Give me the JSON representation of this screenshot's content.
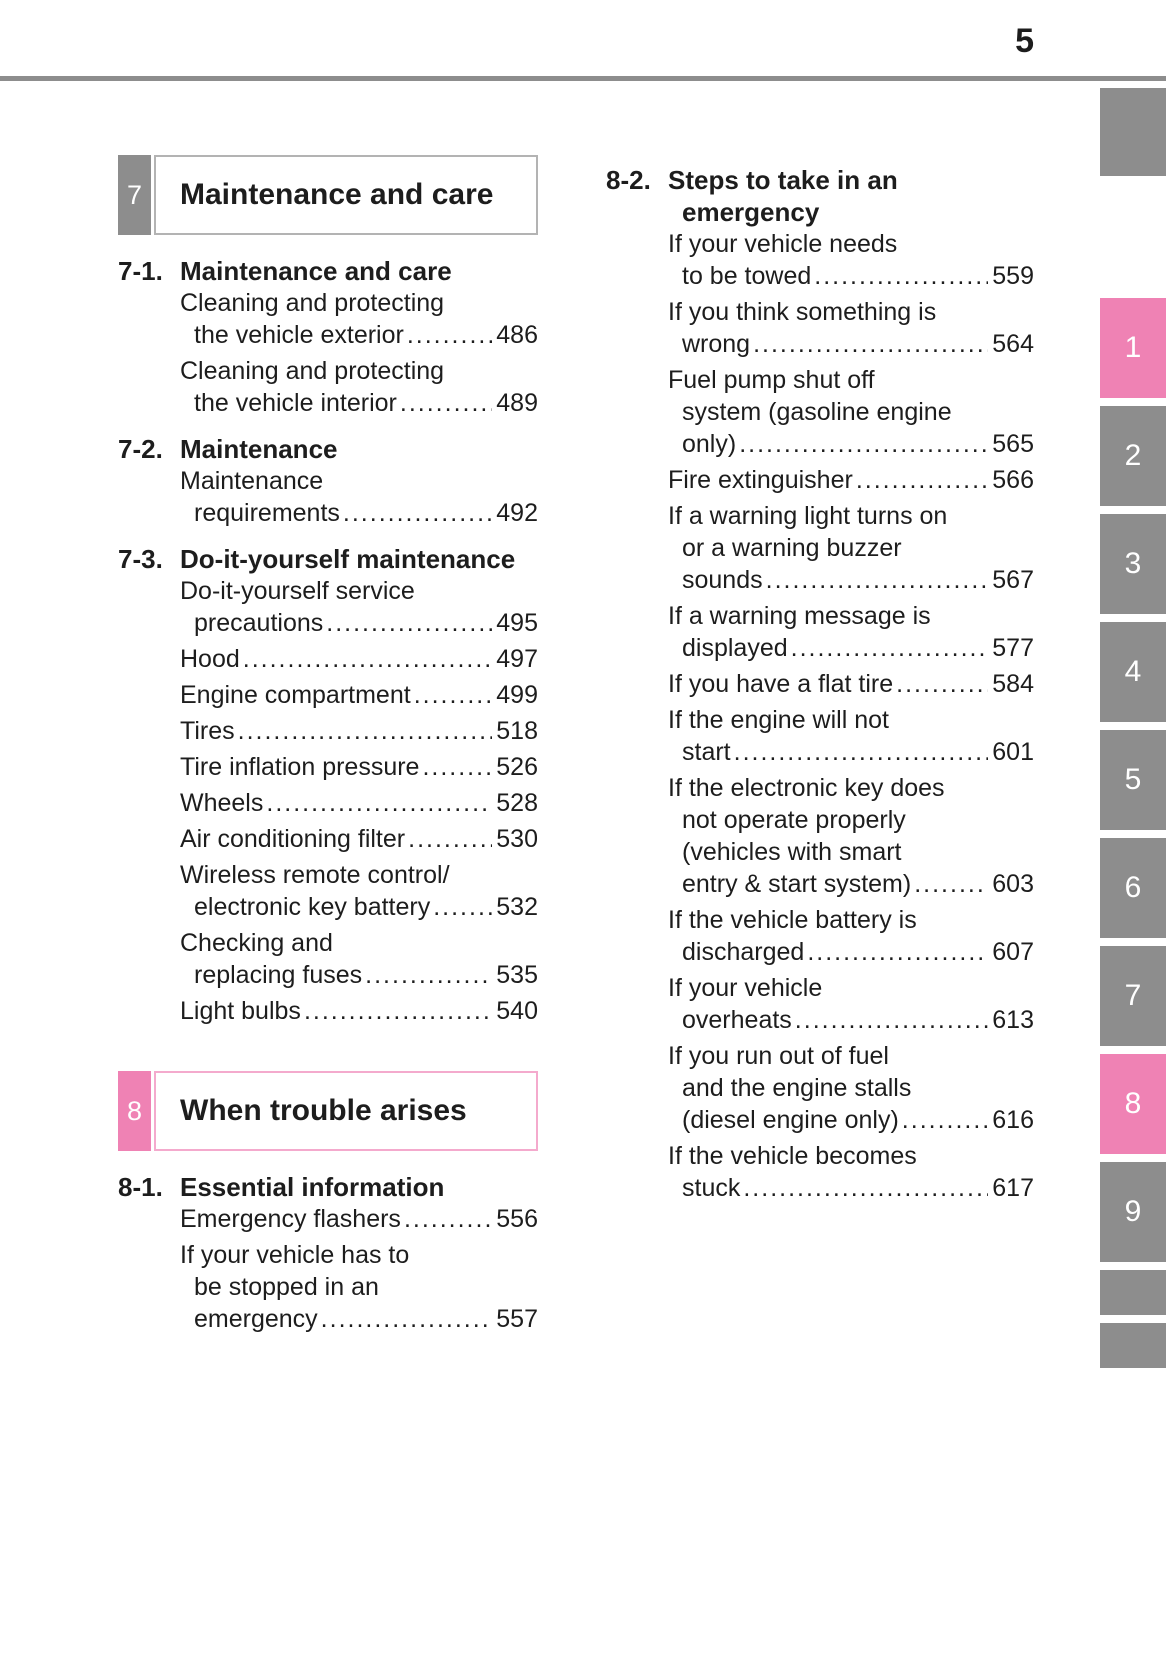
{
  "page": {
    "number": "5"
  },
  "colors": {
    "pink": "#ef82b4",
    "gray": "#8d8d8d"
  },
  "toc": {
    "left": [
      {
        "type": "chapter",
        "num": "7",
        "title": "Maintenance and care",
        "color": "gray"
      },
      {
        "type": "group",
        "num": "7-1.",
        "title": [
          "Maintenance and care"
        ],
        "items": [
          {
            "lines": [
              "Cleaning and protecting",
              "the vehicle exterior"
            ],
            "page": "486"
          },
          {
            "lines": [
              "Cleaning and protecting",
              "the vehicle interior"
            ],
            "page": "489"
          }
        ]
      },
      {
        "type": "group",
        "num": "7-2.",
        "title": [
          "Maintenance"
        ],
        "items": [
          {
            "lines": [
              "Maintenance",
              "requirements"
            ],
            "page": "492"
          }
        ]
      },
      {
        "type": "group",
        "num": "7-3.",
        "title": [
          "Do-it-yourself maintenance"
        ],
        "items": [
          {
            "lines": [
              "Do-it-yourself service",
              "precautions"
            ],
            "page": "495"
          },
          {
            "lines": [
              "Hood"
            ],
            "page": "497"
          },
          {
            "lines": [
              "Engine compartment"
            ],
            "page": "499"
          },
          {
            "lines": [
              "Tires"
            ],
            "page": "518"
          },
          {
            "lines": [
              "Tire inflation pressure"
            ],
            "page": "526"
          },
          {
            "lines": [
              "Wheels"
            ],
            "page": "528"
          },
          {
            "lines": [
              "Air conditioning filter"
            ],
            "page": "530"
          },
          {
            "lines": [
              "Wireless remote control/",
              "electronic key battery"
            ],
            "page": "532"
          },
          {
            "lines": [
              "Checking and",
              "replacing fuses"
            ],
            "page": "535"
          },
          {
            "lines": [
              "Light bulbs"
            ],
            "page": "540"
          }
        ]
      },
      {
        "type": "chapter",
        "num": "8",
        "title": "When trouble arises",
        "color": "pink"
      },
      {
        "type": "group",
        "num": "8-1.",
        "title": [
          "Essential information"
        ],
        "items": [
          {
            "lines": [
              "Emergency flashers"
            ],
            "page": "556"
          },
          {
            "lines": [
              "If your vehicle has to",
              "be stopped in an",
              "emergency"
            ],
            "page": "557"
          }
        ]
      }
    ],
    "right": [
      {
        "type": "group",
        "num": "8-2.",
        "title": [
          "Steps to take in an",
          "emergency"
        ],
        "items": [
          {
            "lines": [
              "If your vehicle needs",
              "to be towed"
            ],
            "page": "559"
          },
          {
            "lines": [
              "If you think something is",
              "wrong"
            ],
            "page": "564"
          },
          {
            "lines": [
              "Fuel pump shut off",
              "system (gasoline engine",
              "only)"
            ],
            "page": "565"
          },
          {
            "lines": [
              "Fire extinguisher"
            ],
            "page": "566"
          },
          {
            "lines": [
              "If a warning light turns on",
              "or a warning buzzer",
              "sounds"
            ],
            "page": "567"
          },
          {
            "lines": [
              "If a warning message is",
              "displayed"
            ],
            "page": "577"
          },
          {
            "lines": [
              "If you have a flat tire"
            ],
            "page": "584"
          },
          {
            "lines": [
              "If the engine will not",
              "start"
            ],
            "page": "601"
          },
          {
            "lines": [
              "If the electronic key does",
              "not operate properly",
              "(vehicles with smart",
              "entry & start system)"
            ],
            "page": "603"
          },
          {
            "lines": [
              "If the vehicle battery is",
              "discharged"
            ],
            "page": "607"
          },
          {
            "lines": [
              "If your vehicle",
              "overheats"
            ],
            "page": "613"
          },
          {
            "lines": [
              "If you run out of fuel",
              "and the engine stalls",
              "(diesel engine only)"
            ],
            "page": "616"
          },
          {
            "lines": [
              "If the vehicle becomes",
              "stuck"
            ],
            "page": "617"
          }
        ]
      }
    ]
  },
  "tabs": [
    {
      "label": "",
      "color": "gray",
      "kind": "top"
    },
    {
      "label": "1",
      "color": "pink",
      "kind": "num"
    },
    {
      "label": "2",
      "color": "gray",
      "kind": "num"
    },
    {
      "label": "3",
      "color": "gray",
      "kind": "num"
    },
    {
      "label": "4",
      "color": "gray",
      "kind": "num"
    },
    {
      "label": "5",
      "color": "gray",
      "kind": "num"
    },
    {
      "label": "6",
      "color": "gray",
      "kind": "num"
    },
    {
      "label": "7",
      "color": "gray",
      "kind": "num"
    },
    {
      "label": "8",
      "color": "pink",
      "kind": "num"
    },
    {
      "label": "9",
      "color": "gray",
      "kind": "num"
    },
    {
      "label": "",
      "color": "gray",
      "kind": "small"
    },
    {
      "label": "",
      "color": "gray",
      "kind": "small"
    }
  ]
}
